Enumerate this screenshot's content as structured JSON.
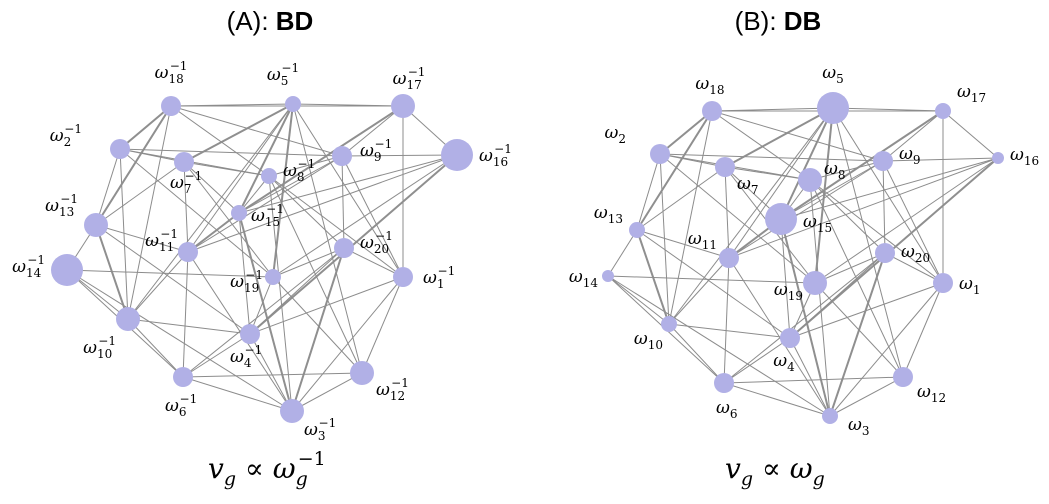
{
  "panels": [
    {
      "id": "A",
      "title_prefix": "(A): ",
      "title_bold": "BD",
      "formula_main": "v",
      "formula_sub": "g",
      "formula_rel": " ∝ ",
      "formula_base": "ω",
      "formula_base_sub": "g",
      "formula_sup": "−1",
      "label_base": "ω",
      "label_sup": "−1",
      "nodes": [
        {
          "id": 1,
          "size": 3
        },
        {
          "id": 2,
          "size": 3
        },
        {
          "id": 3,
          "size": 4
        },
        {
          "id": 4,
          "size": 3
        },
        {
          "id": 5,
          "size": 2
        },
        {
          "id": 6,
          "size": 3
        },
        {
          "id": 7,
          "size": 3
        },
        {
          "id": 8,
          "size": 2
        },
        {
          "id": 9,
          "size": 3
        },
        {
          "id": 10,
          "size": 4
        },
        {
          "id": 11,
          "size": 3
        },
        {
          "id": 12,
          "size": 4
        },
        {
          "id": 13,
          "size": 4
        },
        {
          "id": 14,
          "size": 6
        },
        {
          "id": 15,
          "size": 2
        },
        {
          "id": 16,
          "size": 6
        },
        {
          "id": 17,
          "size": 4
        },
        {
          "id": 18,
          "size": 3
        },
        {
          "id": 19,
          "size": 2
        },
        {
          "id": 20,
          "size": 3
        }
      ]
    },
    {
      "id": "B",
      "title_prefix": "(B): ",
      "title_bold": "DB",
      "formula_main": "v",
      "formula_sub": "g",
      "formula_rel": " ∝ ",
      "formula_base": "ω",
      "formula_base_sub": "g",
      "formula_sup": "",
      "label_base": "ω",
      "label_sup": "",
      "nodes": [
        {
          "id": 1,
          "size": 3
        },
        {
          "id": 2,
          "size": 3
        },
        {
          "id": 3,
          "size": 2
        },
        {
          "id": 4,
          "size": 3
        },
        {
          "id": 5,
          "size": 6
        },
        {
          "id": 6,
          "size": 3
        },
        {
          "id": 7,
          "size": 3
        },
        {
          "id": 8,
          "size": 4
        },
        {
          "id": 9,
          "size": 3
        },
        {
          "id": 10,
          "size": 2
        },
        {
          "id": 11,
          "size": 3
        },
        {
          "id": 12,
          "size": 3
        },
        {
          "id": 13,
          "size": 2
        },
        {
          "id": 14,
          "size": 1
        },
        {
          "id": 15,
          "size": 6
        },
        {
          "id": 16,
          "size": 1
        },
        {
          "id": 17,
          "size": 2
        },
        {
          "id": 18,
          "size": 3
        },
        {
          "id": 19,
          "size": 4
        },
        {
          "id": 20,
          "size": 3
        }
      ]
    }
  ],
  "edges": [
    [
      1,
      3
    ],
    [
      1,
      4
    ],
    [
      1,
      5
    ],
    [
      1,
      8
    ],
    [
      1,
      9
    ],
    [
      1,
      12
    ],
    [
      1,
      17
    ],
    [
      1,
      20
    ],
    [
      2,
      7
    ],
    [
      2,
      8
    ],
    [
      2,
      9
    ],
    [
      2,
      10
    ],
    [
      2,
      13
    ],
    [
      2,
      18
    ],
    [
      2,
      19
    ],
    [
      3,
      4
    ],
    [
      3,
      6
    ],
    [
      3,
      8
    ],
    [
      3,
      11
    ],
    [
      3,
      12
    ],
    [
      3,
      14
    ],
    [
      3,
      15
    ],
    [
      3,
      20
    ],
    [
      4,
      6
    ],
    [
      4,
      10
    ],
    [
      4,
      13
    ],
    [
      4,
      15
    ],
    [
      4,
      16
    ],
    [
      4,
      19
    ],
    [
      4,
      20
    ],
    [
      5,
      7
    ],
    [
      5,
      10
    ],
    [
      5,
      11
    ],
    [
      5,
      12
    ],
    [
      5,
      15
    ],
    [
      5,
      17
    ],
    [
      5,
      18
    ],
    [
      5,
      19
    ],
    [
      6,
      10
    ],
    [
      6,
      11
    ],
    [
      6,
      12
    ],
    [
      6,
      14
    ],
    [
      6,
      20
    ],
    [
      7,
      8
    ],
    [
      7,
      11
    ],
    [
      7,
      13
    ],
    [
      7,
      15
    ],
    [
      7,
      19
    ],
    [
      8,
      9
    ],
    [
      8,
      12
    ],
    [
      8,
      15
    ],
    [
      8,
      18
    ],
    [
      8,
      20
    ],
    [
      9,
      11
    ],
    [
      9,
      15
    ],
    [
      9,
      16
    ],
    [
      9,
      17
    ],
    [
      9,
      18
    ],
    [
      9,
      20
    ],
    [
      10,
      11
    ],
    [
      10,
      13
    ],
    [
      10,
      14
    ],
    [
      10,
      18
    ],
    [
      11,
      13
    ],
    [
      11,
      15
    ],
    [
      11,
      16
    ],
    [
      12,
      19
    ],
    [
      13,
      14
    ],
    [
      13,
      18
    ],
    [
      14,
      19
    ],
    [
      15,
      16
    ],
    [
      15,
      17
    ],
    [
      16,
      17
    ],
    [
      16,
      19
    ],
    [
      17,
      18
    ],
    [
      19,
      20
    ]
  ],
  "strong_edges": [
    [
      2,
      18
    ],
    [
      13,
      18
    ],
    [
      10,
      13
    ],
    [
      3,
      20
    ],
    [
      16,
      20
    ],
    [
      4,
      16
    ],
    [
      5,
      7
    ],
    [
      5,
      19
    ],
    [
      5,
      15
    ],
    [
      15,
      17
    ],
    [
      11,
      15
    ],
    [
      3,
      15
    ]
  ]
}
